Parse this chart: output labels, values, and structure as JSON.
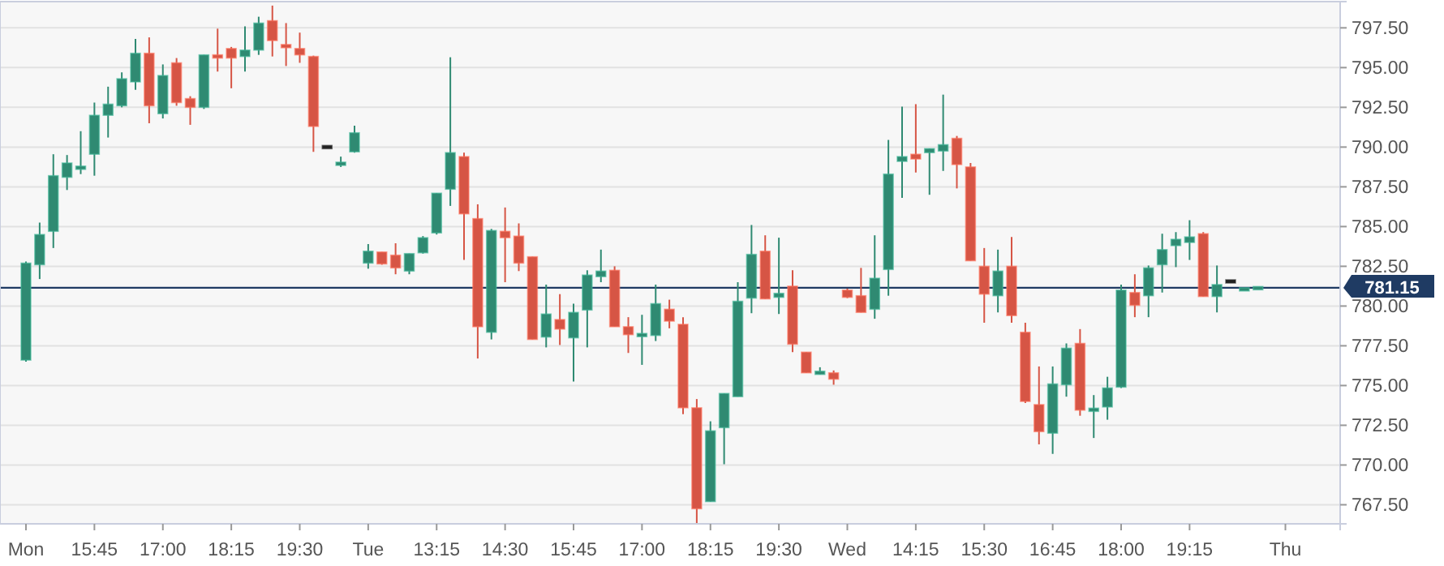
{
  "chart_data": {
    "type": "candlestick",
    "categories": [
      "Mon",
      null,
      null,
      null,
      null,
      "15:45",
      null,
      null,
      null,
      null,
      "17:00",
      null,
      null,
      null,
      null,
      "18:15",
      null,
      null,
      null,
      null,
      "19:30",
      null,
      null,
      null,
      null,
      "Tue",
      null,
      null,
      null,
      null,
      "13:15",
      null,
      null,
      null,
      null,
      "14:30",
      null,
      null,
      null,
      null,
      "15:45",
      null,
      null,
      null,
      null,
      "17:00",
      null,
      null,
      null,
      null,
      "18:15",
      null,
      null,
      null,
      null,
      "19:30",
      null,
      null,
      null,
      null,
      "Wed",
      null,
      null,
      null,
      null,
      "14:15",
      null,
      null,
      null,
      null,
      "15:30",
      null,
      null,
      null,
      null,
      "16:45",
      null,
      null,
      null,
      null,
      "18:00",
      null,
      null,
      null,
      null,
      "19:15",
      null,
      null,
      null,
      null,
      null,
      null,
      "Thu",
      null,
      null,
      null,
      null
    ],
    "ohlc": [
      [
        776.6,
        782.8,
        776.5,
        782.7
      ],
      [
        782.6,
        785.25,
        781.7,
        784.5
      ],
      [
        784.7,
        789.55,
        783.65,
        788.2
      ],
      [
        788.1,
        789.5,
        787.3,
        789.0
      ],
      [
        788.6,
        791.0,
        788.3,
        788.8
      ],
      [
        789.55,
        792.8,
        788.2,
        792.0
      ],
      [
        792.0,
        793.8,
        790.6,
        792.7
      ],
      [
        792.6,
        794.7,
        792.5,
        794.3
      ],
      [
        794.1,
        796.8,
        793.6,
        795.9
      ],
      [
        795.9,
        796.9,
        791.5,
        792.6
      ],
      [
        792.1,
        795.2,
        791.8,
        794.5
      ],
      [
        795.3,
        795.6,
        792.6,
        792.8
      ],
      [
        793.05,
        793.2,
        791.4,
        792.5
      ],
      [
        792.5,
        795.8,
        792.4,
        795.8
      ],
      [
        795.75,
        797.45,
        794.75,
        795.65
      ],
      [
        796.2,
        796.3,
        793.7,
        795.6
      ],
      [
        795.7,
        797.6,
        794.75,
        796.1
      ],
      [
        796.1,
        798.2,
        795.8,
        797.8
      ],
      [
        797.95,
        798.9,
        795.7,
        796.7
      ],
      [
        796.4,
        797.8,
        795.1,
        796.3
      ],
      [
        796.2,
        797.2,
        795.3,
        795.8
      ],
      [
        795.7,
        795.75,
        789.7,
        791.3
      ],
      [
        790.0,
        790.0,
        790.0,
        790.0
      ],
      [
        788.9,
        789.4,
        788.75,
        789.0
      ],
      [
        789.7,
        791.35,
        789.65,
        790.9
      ],
      [
        782.7,
        783.9,
        782.35,
        783.45
      ],
      [
        783.4,
        783.4,
        782.6,
        782.65
      ],
      [
        783.2,
        783.95,
        782.0,
        782.4
      ],
      [
        782.2,
        783.3,
        782.0,
        783.3
      ],
      [
        783.35,
        784.4,
        783.3,
        784.3
      ],
      [
        784.6,
        787.1,
        784.5,
        787.1
      ],
      [
        787.35,
        795.65,
        786.3,
        789.65
      ],
      [
        789.4,
        789.65,
        782.9,
        785.8
      ],
      [
        785.5,
        786.4,
        776.7,
        778.7
      ],
      [
        778.35,
        784.85,
        777.9,
        784.75
      ],
      [
        784.7,
        786.2,
        781.5,
        784.3
      ],
      [
        784.4,
        785.2,
        782.2,
        782.7
      ],
      [
        783.1,
        783.1,
        777.9,
        777.9
      ],
      [
        778.05,
        781.35,
        777.4,
        779.5
      ],
      [
        779.15,
        780.75,
        777.55,
        778.55
      ],
      [
        778.0,
        780.15,
        775.25,
        779.6
      ],
      [
        779.75,
        782.25,
        777.4,
        781.95
      ],
      [
        781.85,
        783.55,
        781.5,
        782.2
      ],
      [
        782.25,
        782.5,
        778.7,
        778.7
      ],
      [
        778.7,
        779.3,
        777.05,
        778.2
      ],
      [
        778.15,
        779.45,
        776.3,
        778.2
      ],
      [
        778.15,
        781.35,
        777.8,
        780.15
      ],
      [
        779.8,
        780.4,
        778.6,
        779.05
      ],
      [
        778.85,
        779.3,
        773.2,
        773.6
      ],
      [
        773.6,
        774.15,
        766.3,
        767.25
      ],
      [
        767.7,
        772.75,
        767.7,
        772.15
      ],
      [
        772.35,
        774.5,
        770.05,
        774.5
      ],
      [
        774.3,
        781.5,
        774.3,
        780.3
      ],
      [
        780.5,
        785.1,
        779.55,
        783.25
      ],
      [
        783.45,
        784.45,
        780.45,
        780.45
      ],
      [
        780.55,
        784.3,
        779.5,
        780.8
      ],
      [
        781.25,
        782.25,
        777.1,
        777.6
      ],
      [
        777.1,
        777.1,
        775.8,
        775.8
      ],
      [
        775.7,
        776.15,
        775.7,
        775.9
      ],
      [
        775.8,
        775.95,
        775.05,
        775.4
      ],
      [
        781.0,
        781.1,
        780.5,
        780.55
      ],
      [
        780.65,
        782.4,
        779.6,
        779.6
      ],
      [
        779.8,
        784.45,
        779.2,
        781.75
      ],
      [
        782.3,
        790.45,
        780.65,
        788.3
      ],
      [
        789.1,
        792.55,
        786.8,
        789.4
      ],
      [
        789.55,
        792.7,
        788.4,
        789.25
      ],
      [
        789.65,
        789.9,
        787.0,
        789.9
      ],
      [
        789.75,
        793.3,
        788.5,
        790.15
      ],
      [
        790.55,
        790.7,
        787.4,
        788.9
      ],
      [
        788.75,
        789.0,
        782.85,
        782.85
      ],
      [
        782.5,
        783.65,
        778.95,
        780.75
      ],
      [
        780.65,
        783.55,
        779.6,
        782.2
      ],
      [
        782.5,
        784.35,
        778.95,
        779.4
      ],
      [
        778.35,
        778.95,
        773.9,
        774.0
      ],
      [
        773.8,
        776.2,
        771.3,
        772.1
      ],
      [
        772.0,
        776.2,
        770.7,
        775.1
      ],
      [
        775.05,
        777.65,
        774.3,
        777.35
      ],
      [
        777.65,
        778.55,
        773.1,
        773.45
      ],
      [
        773.4,
        774.4,
        771.7,
        773.55
      ],
      [
        773.65,
        775.55,
        772.85,
        774.85
      ],
      [
        774.9,
        781.35,
        774.85,
        781.0
      ],
      [
        780.85,
        782.0,
        779.3,
        780.05
      ],
      [
        780.65,
        782.55,
        779.3,
        782.4
      ],
      [
        782.6,
        784.55,
        780.85,
        783.55
      ],
      [
        783.8,
        784.65,
        782.45,
        784.2
      ],
      [
        784.0,
        785.4,
        782.9,
        784.35
      ],
      [
        784.55,
        784.65,
        780.6,
        780.6
      ],
      [
        780.6,
        782.55,
        779.6,
        781.35
      ],
      [
        781.55,
        781.55,
        781.55,
        781.55
      ],
      [
        781.0,
        781.1,
        781.0,
        781.1
      ],
      [
        781.1,
        781.15,
        781.1,
        781.15
      ],
      null,
      null,
      null,
      null,
      null,
      null
    ],
    "colors": [
      "#2f8a72",
      "#2f8a72",
      "#2f8a72",
      "#2f8a72",
      "#2f8a72",
      "#2f8a72",
      "#2f8a72",
      "#2f8a72",
      "#2f8a72",
      "#d65545",
      "#2f8a72",
      "#d65545",
      "#d65545",
      "#2f8a72",
      "#d65545",
      "#d65545",
      "#2f8a72",
      "#2f8a72",
      "#d65545",
      "#d65545",
      "#d65545",
      "#d65545",
      "#222222",
      "#2f8a72",
      "#2f8a72",
      "#2f8a72",
      "#d65545",
      "#d65545",
      "#2f8a72",
      "#2f8a72",
      "#2f8a72",
      "#2f8a72",
      "#d65545",
      "#d65545",
      "#2f8a72",
      "#d65545",
      "#d65545",
      "#d65545",
      "#2f8a72",
      "#d65545",
      "#2f8a72",
      "#2f8a72",
      "#2f8a72",
      "#d65545",
      "#d65545",
      "#2f8a72",
      "#2f8a72",
      "#d65545",
      "#d65545",
      "#d65545",
      "#2f8a72",
      "#2f8a72",
      "#2f8a72",
      "#2f8a72",
      "#d65545",
      "#2f8a72",
      "#d65545",
      "#d65545",
      "#2f8a72",
      "#d65545",
      "#d65545",
      "#d65545",
      "#2f8a72",
      "#2f8a72",
      "#2f8a72",
      "#d65545",
      "#2f8a72",
      "#2f8a72",
      "#d65545",
      "#d65545",
      "#d65545",
      "#2f8a72",
      "#d65545",
      "#d65545",
      "#d65545",
      "#2f8a72",
      "#2f8a72",
      "#d65545",
      "#2f8a72",
      "#2f8a72",
      "#2f8a72",
      "#d65545",
      "#2f8a72",
      "#2f8a72",
      "#2f8a72",
      "#2f8a72",
      "#d65545",
      "#2f8a72",
      "#222222",
      "#2f8a72",
      "#2f8a72",
      null,
      null,
      null,
      null,
      null,
      null
    ],
    "ylim": [
      766.3,
      799.15
    ],
    "yticks": [
      {
        "value": 767.5,
        "label": "767.50"
      },
      {
        "value": 770,
        "label": "770.00"
      },
      {
        "value": 772.5,
        "label": "772.50"
      },
      {
        "value": 775,
        "label": "775.00"
      },
      {
        "value": 777.5,
        "label": "777.50"
      },
      {
        "value": 780,
        "label": "780.00"
      },
      {
        "value": 782.5,
        "label": "782.50"
      },
      {
        "value": 785,
        "label": "785.00"
      },
      {
        "value": 787.5,
        "label": "787.50"
      },
      {
        "value": 790,
        "label": "790.00"
      },
      {
        "value": 792.5,
        "label": "792.50"
      },
      {
        "value": 795,
        "label": "795.00"
      },
      {
        "value": 797.5,
        "label": "797.50"
      }
    ],
    "grid": "y",
    "ref_lines": [
      {
        "axis": "y",
        "value": 781.15,
        "label": "781.15",
        "color": "#1f3b63"
      }
    ]
  }
}
